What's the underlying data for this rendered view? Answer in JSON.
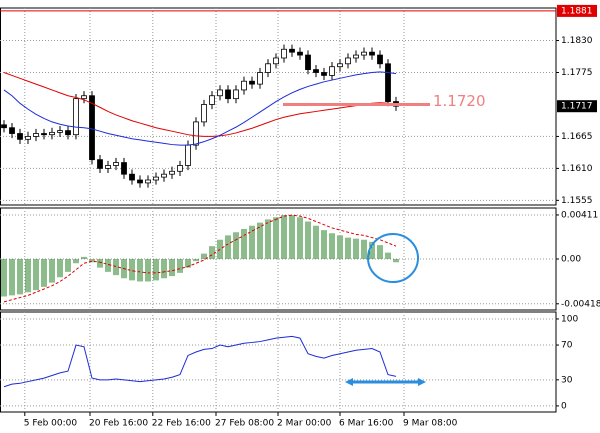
{
  "chart_data": [
    {
      "type": "candlestick",
      "open": [
        1.1685,
        1.168,
        1.167,
        1.166,
        1.1665,
        1.167,
        1.1668,
        1.1672,
        1.1675,
        1.1668,
        1.173,
        1.1735,
        1.1625,
        1.161,
        1.1615,
        1.162,
        1.16,
        1.159,
        1.1585,
        1.159,
        1.1595,
        1.16,
        1.1605,
        1.1615,
        1.165,
        1.169,
        1.172,
        1.1735,
        1.1745,
        1.173,
        1.1745,
        1.176,
        1.1755,
        1.1775,
        1.179,
        1.18,
        1.1815,
        1.181,
        1.1805,
        1.178,
        1.1775,
        1.177,
        1.1785,
        1.179,
        1.18,
        1.1805,
        1.181,
        1.1805,
        1.179,
        1.1725
      ],
      "high": [
        1.1693,
        1.1688,
        1.1678,
        1.1673,
        1.1678,
        1.1678,
        1.168,
        1.1683,
        1.1683,
        1.1738,
        1.1743,
        1.1743,
        1.1633,
        1.1623,
        1.1628,
        1.1628,
        1.1608,
        1.1598,
        1.1598,
        1.1603,
        1.1608,
        1.1613,
        1.1623,
        1.1658,
        1.1698,
        1.1728,
        1.1743,
        1.1753,
        1.1753,
        1.1753,
        1.1768,
        1.1768,
        1.1783,
        1.1798,
        1.1808,
        1.1823,
        1.1823,
        1.1818,
        1.1813,
        1.1788,
        1.1783,
        1.1793,
        1.1798,
        1.1808,
        1.1813,
        1.1818,
        1.1818,
        1.1813,
        1.1798,
        1.1733
      ],
      "low": [
        1.1672,
        1.1662,
        1.1652,
        1.1652,
        1.1657,
        1.166,
        1.166,
        1.1664,
        1.166,
        1.166,
        1.1722,
        1.1617,
        1.1602,
        1.1602,
        1.1607,
        1.1592,
        1.1582,
        1.1577,
        1.1577,
        1.1582,
        1.1587,
        1.1592,
        1.1597,
        1.1607,
        1.1642,
        1.1682,
        1.1712,
        1.1727,
        1.1722,
        1.1722,
        1.1737,
        1.1747,
        1.1747,
        1.1767,
        1.1782,
        1.1792,
        1.1802,
        1.1797,
        1.1772,
        1.1767,
        1.1762,
        1.1762,
        1.1777,
        1.1782,
        1.1792,
        1.1797,
        1.1797,
        1.1782,
        1.1717,
        1.1709
      ],
      "close": [
        1.168,
        1.167,
        1.166,
        1.1665,
        1.167,
        1.1668,
        1.1672,
        1.1675,
        1.1668,
        1.173,
        1.1735,
        1.1625,
        1.161,
        1.1615,
        1.162,
        1.16,
        1.159,
        1.1585,
        1.159,
        1.1595,
        1.16,
        1.1605,
        1.1615,
        1.165,
        1.169,
        1.172,
        1.1735,
        1.1745,
        1.173,
        1.1745,
        1.176,
        1.1755,
        1.1775,
        1.179,
        1.18,
        1.1815,
        1.181,
        1.1805,
        1.178,
        1.1775,
        1.177,
        1.1785,
        1.179,
        1.18,
        1.1805,
        1.181,
        1.1805,
        1.179,
        1.1725,
        1.1717
      ],
      "lines": [
        {
          "color": "#e00000",
          "values": [
            1.1775,
            1.177,
            1.1765,
            1.176,
            1.1755,
            1.175,
            1.1745,
            1.174,
            1.1735,
            1.1732,
            1.1728,
            1.1722,
            1.1715,
            1.1708,
            1.1702,
            1.1697,
            1.1692,
            1.1688,
            1.1684,
            1.168,
            1.1677,
            1.1674,
            1.1671,
            1.1668,
            1.1666,
            1.1665,
            1.1665,
            1.1666,
            1.1668,
            1.1671,
            1.1675,
            1.1679,
            1.1684,
            1.1689,
            1.1694,
            1.1698,
            1.1701,
            1.1704,
            1.1706,
            1.1708,
            1.171,
            1.1712,
            1.1714,
            1.1716,
            1.1718,
            1.172,
            1.1722,
            1.1723,
            1.1722,
            1.172
          ]
        },
        {
          "color": "#1c2cd8",
          "values": [
            1.1745,
            1.1735,
            1.1722,
            1.1712,
            1.1703,
            1.1696,
            1.169,
            1.1686,
            1.1683,
            1.1681,
            1.168,
            1.1678,
            1.1674,
            1.167,
            1.1667,
            1.1664,
            1.1661,
            1.1659,
            1.1657,
            1.1655,
            1.1653,
            1.1651,
            1.165,
            1.165,
            1.1652,
            1.1656,
            1.1661,
            1.1667,
            1.1674,
            1.1681,
            1.1689,
            1.1698,
            1.1707,
            1.1716,
            1.1725,
            1.1733,
            1.174,
            1.1746,
            1.1751,
            1.1755,
            1.1759,
            1.1762,
            1.1765,
            1.1768,
            1.1771,
            1.1773,
            1.1775,
            1.1776,
            1.1775,
            1.1773
          ]
        }
      ],
      "ylim": [
        1.1547,
        1.1886
      ],
      "yticks": [
        {
          "value": 1.183,
          "label": "1.1830"
        },
        {
          "value": 1.1775,
          "label": "1.1775"
        },
        {
          "value": 1.1665,
          "label": "1.1665"
        },
        {
          "value": 1.161,
          "label": "1.1610"
        },
        {
          "value": 1.1555,
          "label": "1.1555"
        }
      ],
      "xlim": [
        -0.5,
        69
      ],
      "xticks": [
        {
          "value": 2.6,
          "label": "5 Feb 00:00"
        },
        {
          "value": 10.75,
          "label": "20 Feb 16:00"
        },
        {
          "value": 18.6,
          "label": "22 Feb 16:00"
        },
        {
          "value": 26.5,
          "label": "27 Feb 08:00"
        },
        {
          "value": 34.25,
          "label": "2 Mar 00:00"
        },
        {
          "value": 42,
          "label": "6 Mar 16:00"
        },
        {
          "value": 50,
          "label": "9 Mar 08:00"
        }
      ],
      "price_line": {
        "value": 1.1881,
        "label": "1.1881",
        "color": "#e00000"
      },
      "current_price": {
        "value": 1.1717,
        "label": "1.1717"
      },
      "annotation": {
        "value": 1.172,
        "label": "1.1720",
        "color": "#f08080"
      },
      "grid": true
    },
    {
      "type": "bar",
      "values": [
        -0.0035,
        -0.0034,
        -0.0033,
        -0.0031,
        -0.0029,
        -0.0026,
        -0.0022,
        -0.0017,
        -0.0012,
        -0.0004,
        0.0002,
        -0.0003,
        -0.0008,
        -0.0012,
        -0.0015,
        -0.0018,
        -0.002,
        -0.0021,
        -0.0021,
        -0.002,
        -0.0018,
        -0.0016,
        -0.0013,
        -0.0008,
        -0.0002,
        0.0005,
        0.0012,
        0.0018,
        0.0022,
        0.0025,
        0.0028,
        0.0031,
        0.0034,
        0.0037,
        0.0039,
        0.0041,
        0.0041,
        0.0039,
        0.0035,
        0.0031,
        0.0027,
        0.0024,
        0.0022,
        0.002,
        0.0019,
        0.0018,
        0.0016,
        0.0013,
        0.0006,
        -0.0003
      ],
      "color": "#1a7a1a",
      "signal": {
        "color": "#e00000",
        "values": [
          -0.004,
          -0.0038,
          -0.0036,
          -0.0034,
          -0.0031,
          -0.0028,
          -0.0025,
          -0.0021,
          -0.0016,
          -0.001,
          -0.0004,
          -0.0002,
          -0.0003,
          -0.0005,
          -0.0007,
          -0.0009,
          -0.0011,
          -0.0012,
          -0.0013,
          -0.0013,
          -0.0012,
          -0.0011,
          -0.0009,
          -0.0007,
          -0.0004,
          -0.0001,
          0.0004,
          0.0009,
          0.0014,
          0.0018,
          0.0022,
          0.0026,
          0.003,
          0.0034,
          0.0037,
          0.004,
          0.0041,
          0.004,
          0.0038,
          0.0035,
          0.0032,
          0.0029,
          0.0027,
          0.0025,
          0.0023,
          0.0022,
          0.002,
          0.0018,
          0.0015,
          0.0012
        ]
      },
      "ylim": [
        -0.00476,
        0.00476
      ],
      "yticks": [
        {
          "value": 0.00411,
          "label": "0.00411"
        },
        {
          "value": 0,
          "label": "0.00"
        },
        {
          "value": -0.00418,
          "label": "-0.00418"
        }
      ]
    },
    {
      "type": "line",
      "color": "#1c2cd8",
      "values": [
        22,
        25,
        26,
        28,
        30,
        32,
        35,
        38,
        40,
        70,
        68,
        32,
        30,
        30,
        31,
        30,
        29,
        28,
        29,
        30,
        31,
        33,
        36,
        58,
        62,
        65,
        66,
        70,
        68,
        70,
        72,
        73,
        74,
        76,
        78,
        79,
        80,
        78,
        60,
        57,
        55,
        58,
        60,
        62,
        64,
        65,
        66,
        62,
        36,
        34
      ],
      "ylim": [
        -7,
        108
      ],
      "yticks": [
        100,
        70,
        30,
        0
      ]
    }
  ]
}
